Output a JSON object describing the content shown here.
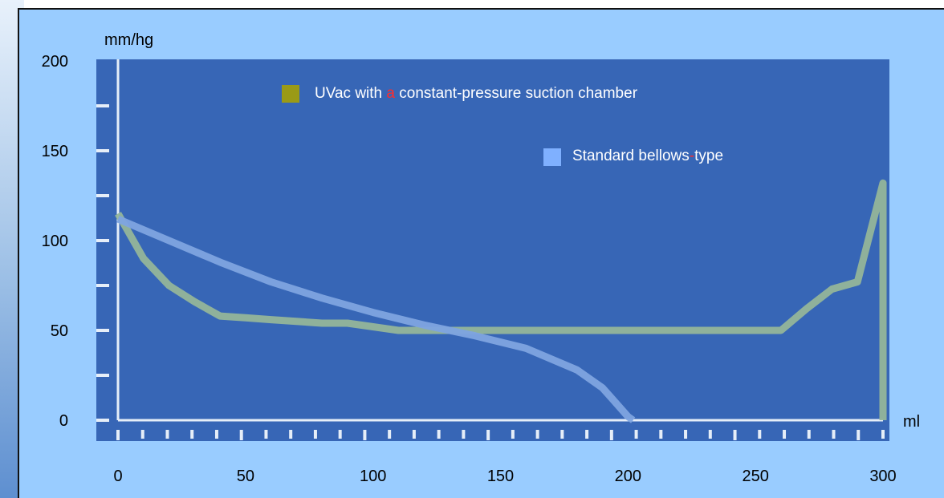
{
  "chart_data": {
    "type": "line",
    "title": "",
    "ylabel": "mm/hg",
    "xlabel": "ml",
    "xlim": [
      0,
      300
    ],
    "ylim": [
      0,
      200
    ],
    "x_ticks": [
      0,
      50,
      100,
      150,
      200,
      250,
      300
    ],
    "y_ticks": [
      0,
      50,
      100,
      150,
      200
    ],
    "grid": false,
    "legend_position": "top-center",
    "colors": {
      "plot_background": "#3766b6",
      "outer_background": "#99ccff",
      "axis_line": "#e6eef8",
      "uvac_line": "#93b59a",
      "bellows_line": "#7ea4e0",
      "uvac_legend_marker": "#9a9a16",
      "bellows_legend_marker": "#7fb0ff",
      "legend_highlight": "#ff2b2b"
    },
    "legend": [
      {
        "id": "uvac",
        "parts": [
          "UVac with ",
          "a",
          " constant-pressure suction chamber"
        ],
        "highlight_index": 1
      },
      {
        "id": "bellows",
        "parts": [
          "Standard bellows",
          "-",
          "type"
        ],
        "highlight_index": 1
      }
    ],
    "series": [
      {
        "id": "uvac",
        "x": [
          0,
          10,
          20,
          30,
          40,
          50,
          60,
          70,
          80,
          90,
          100,
          110,
          120,
          130,
          150,
          200,
          250,
          260,
          270,
          280,
          290,
          300,
          300
        ],
        "y": [
          115,
          90,
          75,
          66,
          58,
          57,
          56,
          55,
          54,
          54,
          52,
          50,
          50,
          50,
          50,
          50,
          50,
          50,
          62,
          73,
          77,
          132,
          0
        ]
      },
      {
        "id": "bellows",
        "x": [
          0,
          20,
          40,
          60,
          80,
          100,
          120,
          140,
          160,
          180,
          190,
          195,
          200,
          202
        ],
        "y": [
          112,
          100,
          88,
          77,
          68,
          60,
          53,
          47,
          40,
          28,
          18,
          10,
          2,
          0
        ]
      }
    ]
  }
}
